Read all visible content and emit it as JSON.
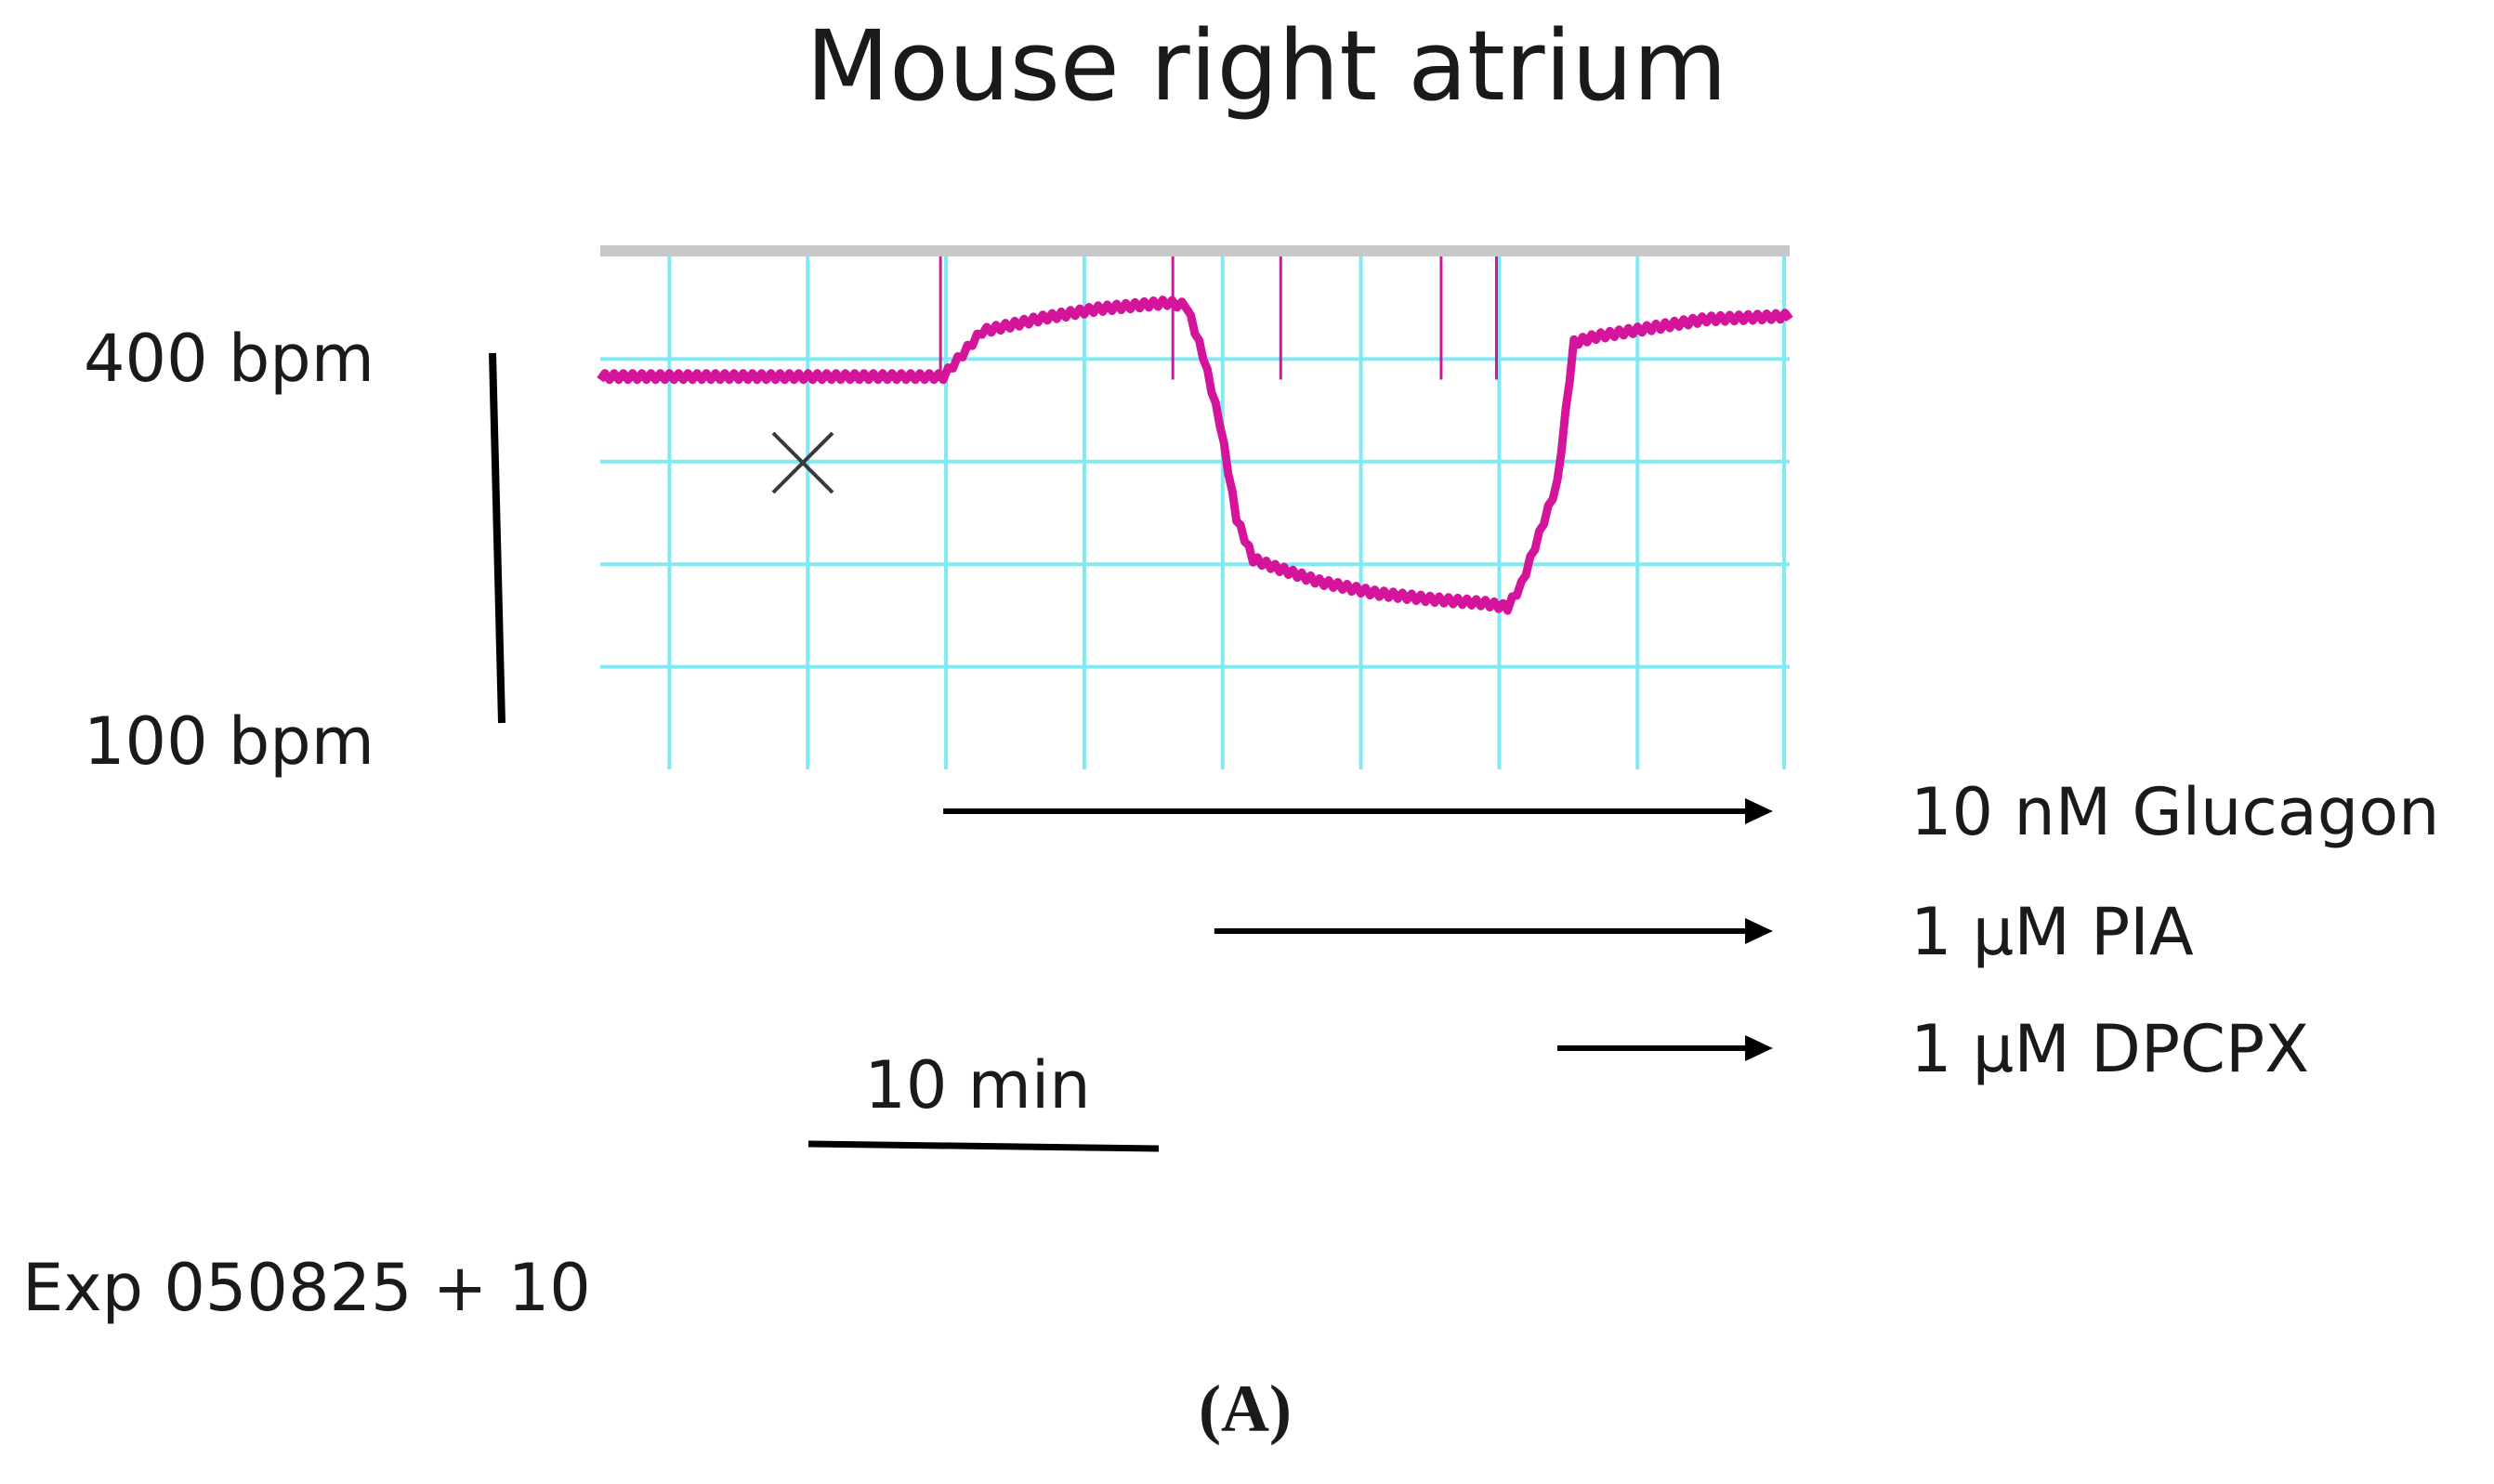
{
  "chart_data": {
    "type": "line",
    "title": "Mouse right atrium",
    "xlabel": "",
    "ylabel": "",
    "ylim": [
      0,
      500
    ],
    "xlim": [
      0,
      43
    ],
    "grid": true,
    "y_scale_labels": [
      "400 bpm",
      "100 bpm"
    ],
    "time_scale_label": "10 min",
    "experiment_label": "Exp 050825 + 10",
    "panel_label": "(A)",
    "marker_colors": {
      "trace": "#d4149b",
      "grid": "#7fe9f4",
      "top_bar": "#c8c8c8",
      "text": "#1a1a1a"
    },
    "series": [
      {
        "values_x": [
          0,
          6.5,
          12.4,
          13.8,
          16,
          18,
          20.5,
          21.2,
          21.8,
          22.4,
          23,
          23.6,
          24.4,
          26,
          28,
          30,
          32,
          32.8,
          33.3,
          34.6,
          35.2,
          36,
          40,
          43
        ],
        "values_y": [
          383,
          383,
          383,
          427,
          440,
          449,
          455,
          452,
          403,
          338,
          245,
          205,
          197,
          183,
          172,
          166,
          162,
          158,
          180,
          279,
          416,
          422,
          439,
          442
        ]
      }
    ],
    "event_lines_x": [
      12.3,
      20.7,
      24.6,
      30.4,
      32.4
    ],
    "treatments": [
      {
        "label": "10 nM Glucagon",
        "start_x": 12.4
      },
      {
        "label": "1 µM PIA",
        "start_x": 22.2
      },
      {
        "label": "1 µM DPCPX",
        "start_x": 34.6
      }
    ]
  }
}
